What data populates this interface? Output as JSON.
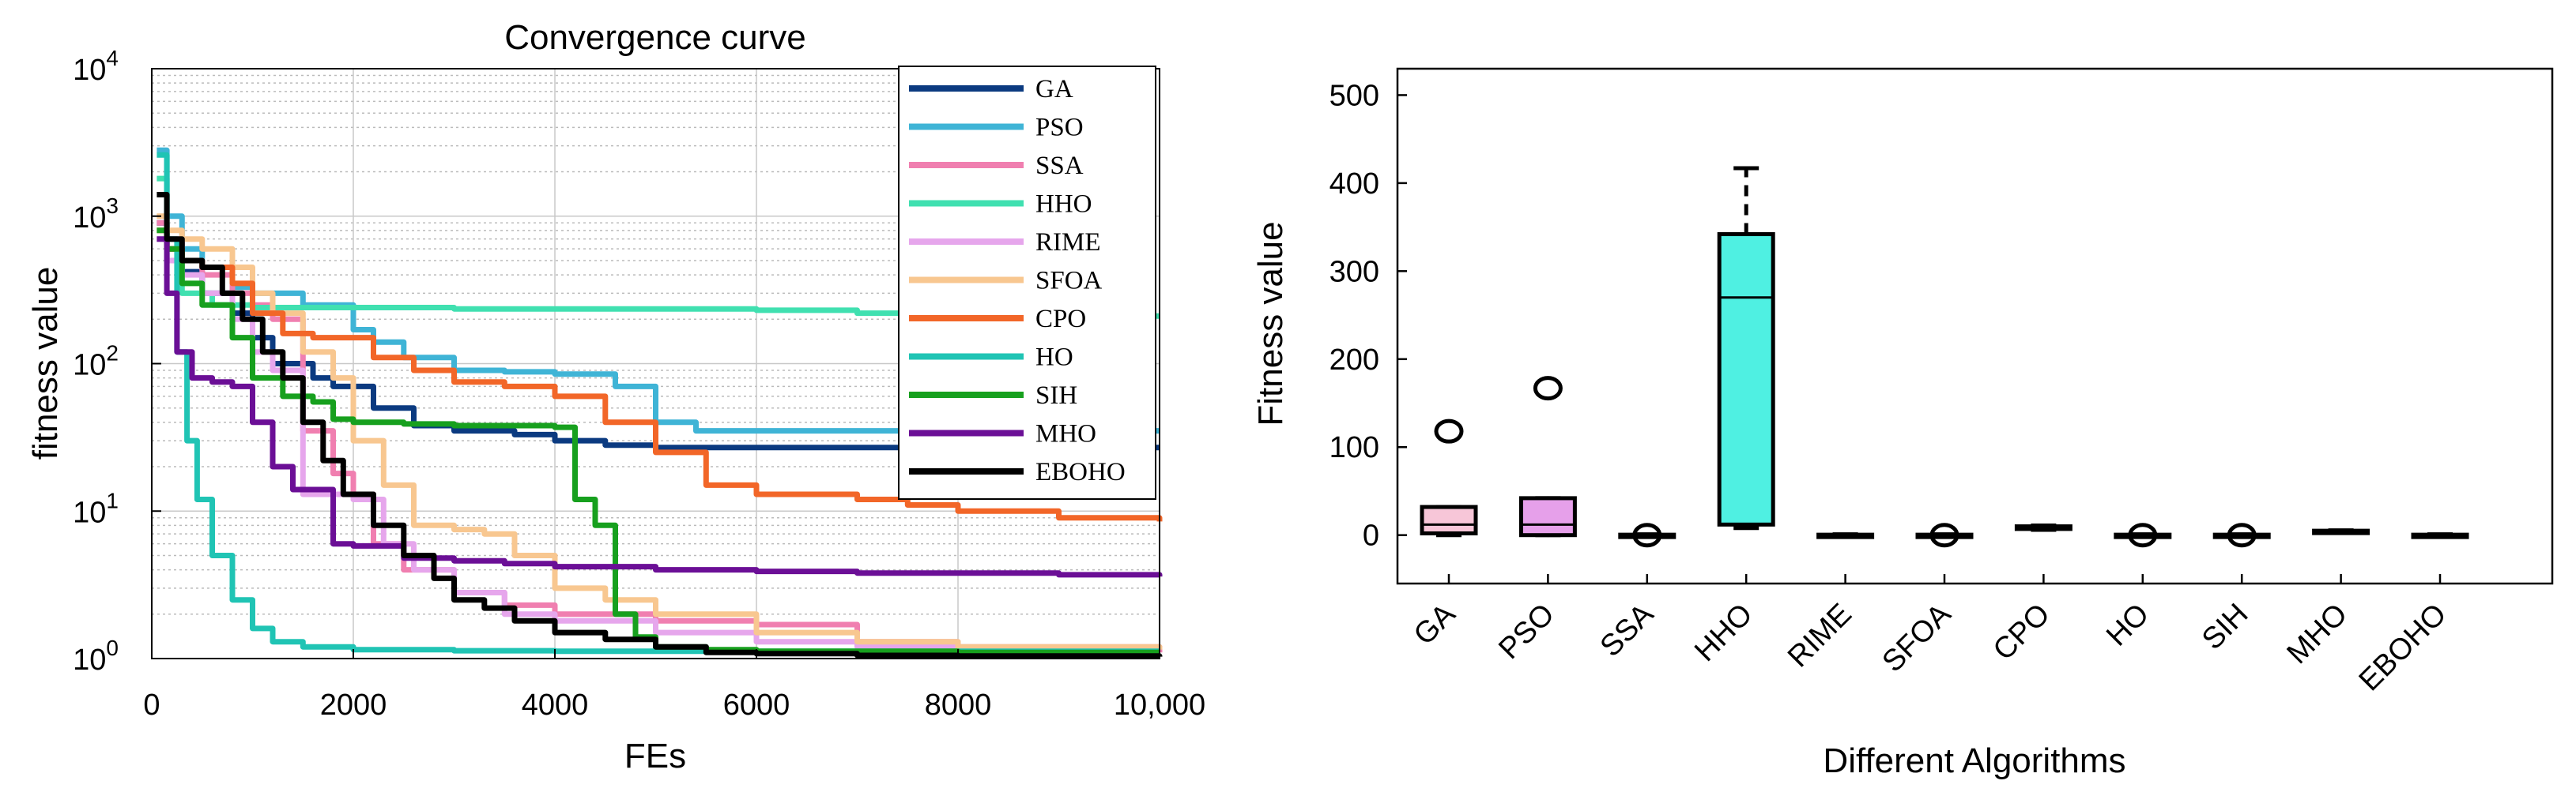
{
  "chart_data": [
    {
      "type": "line",
      "title": "Convergence curve",
      "xlabel": "FEs",
      "ylabel": "fitness value",
      "xlim": [
        0,
        10000
      ],
      "ylim": [
        1,
        10000
      ],
      "yscale": "log",
      "grid": true,
      "legend": "top-right",
      "xticks": [
        0,
        2000,
        4000,
        6000,
        8000,
        10000
      ],
      "xtick_labels": [
        "0",
        "2000",
        "4000",
        "6000",
        "8000",
        "10,000"
      ],
      "yticks": [
        1,
        10,
        100,
        1000,
        10000
      ],
      "ytick_labels": [
        {
          "base": "10",
          "exp": "0"
        },
        {
          "base": "10",
          "exp": "1"
        },
        {
          "base": "10",
          "exp": "2"
        },
        {
          "base": "10",
          "exp": "3"
        },
        {
          "base": "10",
          "exp": "4"
        }
      ],
      "series": [
        {
          "name": "GA",
          "color": "#0b3a80",
          "x": [
            50,
            150,
            300,
            500,
            800,
            1000,
            1200,
            1600,
            1800,
            2200,
            2600,
            3000,
            3600,
            4000,
            4500,
            5000,
            6000,
            7000,
            8000,
            9000,
            10000
          ],
          "y": [
            900,
            600,
            420,
            300,
            220,
            150,
            100,
            80,
            70,
            50,
            38,
            35,
            33,
            30,
            28,
            27,
            27,
            27,
            27,
            27,
            27
          ]
        },
        {
          "name": "PSO",
          "color": "#3fb4d6",
          "x": [
            50,
            150,
            300,
            500,
            800,
            1000,
            1500,
            2000,
            2200,
            2500,
            3000,
            3500,
            4000,
            4600,
            5000,
            5400,
            6000,
            7000,
            8000,
            9000,
            10000
          ],
          "y": [
            2800,
            1000,
            600,
            450,
            330,
            300,
            250,
            170,
            140,
            110,
            90,
            88,
            85,
            70,
            40,
            35,
            35,
            35,
            35,
            35,
            35
          ]
        },
        {
          "name": "SSA",
          "color": "#f07fb0",
          "x": [
            50,
            150,
            300,
            500,
            800,
            1000,
            1200,
            1500,
            1800,
            2000,
            2200,
            2500,
            3000,
            3500,
            4000,
            5000,
            6000,
            7000,
            8000,
            10000
          ],
          "y": [
            900,
            700,
            500,
            400,
            300,
            250,
            200,
            35,
            18,
            13,
            6,
            4,
            2.8,
            2.3,
            2,
            1.8,
            1.7,
            1.3,
            1.2,
            1.1
          ]
        },
        {
          "name": "HHO",
          "color": "#40e0b0",
          "x": [
            50,
            150,
            300,
            600,
            1000,
            2000,
            3000,
            4000,
            5000,
            6000,
            7000,
            8000,
            9000,
            10000
          ],
          "y": [
            1800,
            500,
            300,
            250,
            240,
            240,
            235,
            235,
            235,
            230,
            220,
            215,
            210,
            210
          ]
        },
        {
          "name": "RIME",
          "color": "#e6a6ec",
          "x": [
            50,
            150,
            300,
            500,
            800,
            1000,
            1200,
            1500,
            1800,
            2000,
            2300,
            2600,
            3000,
            3500,
            4000,
            5000,
            6000,
            7000,
            8000,
            10000
          ],
          "y": [
            700,
            500,
            400,
            300,
            200,
            120,
            90,
            13,
            13,
            12,
            6,
            4,
            2.8,
            2,
            1.8,
            1.5,
            1.3,
            1.2,
            1.1,
            1.1
          ]
        },
        {
          "name": "SFOA",
          "color": "#f8c790",
          "x": [
            50,
            150,
            300,
            500,
            800,
            1000,
            1200,
            1500,
            1800,
            2000,
            2300,
            2600,
            3000,
            3300,
            3600,
            4000,
            4500,
            5000,
            6000,
            7000,
            8000,
            10000
          ],
          "y": [
            1000,
            800,
            700,
            600,
            450,
            300,
            220,
            120,
            80,
            30,
            15,
            8,
            7.5,
            7,
            5,
            3,
            2.5,
            2,
            1.5,
            1.3,
            1.2,
            1.15
          ]
        },
        {
          "name": "CPO",
          "color": "#f26628",
          "x": [
            50,
            150,
            300,
            500,
            800,
            1000,
            1300,
            1600,
            1900,
            2200,
            2600,
            3000,
            3500,
            4000,
            4500,
            5000,
            5500,
            6000,
            6500,
            7000,
            7500,
            8000,
            9000,
            10000
          ],
          "y": [
            800,
            600,
            500,
            450,
            350,
            220,
            160,
            150,
            150,
            110,
            90,
            75,
            70,
            60,
            40,
            25,
            15,
            13,
            13,
            12,
            11,
            10,
            9,
            8.5
          ]
        },
        {
          "name": "HO",
          "color": "#20c4b4",
          "x": [
            50,
            150,
            250,
            350,
            450,
            600,
            800,
            1000,
            1200,
            1500,
            2000,
            3000,
            4000,
            5000,
            6000,
            8000,
            10000
          ],
          "y": [
            2600,
            700,
            120,
            30,
            12,
            5,
            2.5,
            1.6,
            1.3,
            1.2,
            1.15,
            1.13,
            1.12,
            1.12,
            1.12,
            1.12,
            1.12
          ]
        },
        {
          "name": "SIH",
          "color": "#17a01e",
          "x": [
            50,
            150,
            300,
            500,
            800,
            1000,
            1300,
            1600,
            1800,
            2000,
            2500,
            3000,
            3500,
            4000,
            4200,
            4400,
            4600,
            4800,
            5000,
            5500,
            6000,
            7000,
            8000,
            10000
          ],
          "y": [
            800,
            600,
            350,
            250,
            150,
            80,
            60,
            55,
            42,
            40,
            39,
            38,
            38,
            37,
            12,
            8,
            2,
            1.4,
            1.2,
            1.15,
            1.12,
            1.12,
            1.1,
            1.1
          ]
        },
        {
          "name": "MHO",
          "color": "#6b0f96",
          "x": [
            50,
            150,
            250,
            400,
            600,
            800,
            1000,
            1200,
            1400,
            1600,
            1800,
            2000,
            2500,
            3000,
            3500,
            4000,
            5000,
            6000,
            7000,
            8000,
            9000,
            10000
          ],
          "y": [
            700,
            300,
            120,
            80,
            75,
            70,
            40,
            20,
            14,
            14,
            6,
            5.8,
            4.8,
            4.6,
            4.4,
            4.2,
            4,
            3.9,
            3.8,
            3.8,
            3.7,
            3.6
          ]
        },
        {
          "name": "EBOHO",
          "color": "#000000",
          "x": [
            50,
            150,
            300,
            500,
            700,
            900,
            1100,
            1300,
            1500,
            1700,
            1900,
            2200,
            2500,
            2800,
            3000,
            3300,
            3600,
            4000,
            4500,
            5000,
            5500,
            6000,
            7000,
            8000,
            10000
          ],
          "y": [
            1400,
            700,
            500,
            450,
            300,
            200,
            120,
            80,
            40,
            22,
            13,
            8,
            5,
            3.5,
            2.5,
            2.2,
            1.8,
            1.5,
            1.35,
            1.2,
            1.1,
            1.08,
            1.05,
            1.04,
            1.03
          ]
        }
      ]
    },
    {
      "type": "box",
      "xlabel": "Different Algorithms",
      "ylabel": "Fitness value",
      "ylim": [
        -55,
        530
      ],
      "yticks": [
        0,
        100,
        200,
        300,
        400,
        500
      ],
      "categories": [
        "GA",
        "PSO",
        "SSA",
        "HHO",
        "RIME",
        "SFOA",
        "CPO",
        "HO",
        "SIH",
        "MHO",
        "EBOHO"
      ],
      "boxes": [
        {
          "name": "GA",
          "min": 0,
          "q1": 2,
          "median": 12,
          "q3": 32,
          "max": 32,
          "outliers": [
            118
          ],
          "fill": "#f7c6d8"
        },
        {
          "name": "PSO",
          "min": 0,
          "q1": 0,
          "median": 12,
          "q3": 42,
          "max": 42,
          "outliers": [
            167
          ],
          "fill": "#e6a0ea"
        },
        {
          "name": "SSA",
          "min": 0,
          "q1": 0,
          "median": 0,
          "q3": 0.5,
          "max": 1,
          "outliers": [
            0
          ],
          "fill": "#f7c6d8"
        },
        {
          "name": "HHO",
          "min": 8,
          "q1": 12,
          "median": 270,
          "q3": 342,
          "max": 417,
          "outliers": [],
          "fill": "#4ff0e2"
        },
        {
          "name": "RIME",
          "min": 0,
          "q1": 0,
          "median": 0,
          "q3": 0.5,
          "max": 1,
          "outliers": [],
          "fill": "#e6a0ea"
        },
        {
          "name": "SFOA",
          "min": 0,
          "q1": 0,
          "median": 0,
          "q3": 0.5,
          "max": 1,
          "outliers": [
            0
          ],
          "fill": "#f8c790"
        },
        {
          "name": "CPO",
          "min": 6,
          "q1": 7,
          "median": 8,
          "q3": 10,
          "max": 11,
          "outliers": [],
          "fill": "#f26628"
        },
        {
          "name": "HO",
          "min": 0,
          "q1": 0,
          "median": 0,
          "q3": 0.5,
          "max": 1,
          "outliers": [
            0
          ],
          "fill": "#20c4b4"
        },
        {
          "name": "SIH",
          "min": 0,
          "q1": 0,
          "median": 0,
          "q3": 0.5,
          "max": 1,
          "outliers": [
            0
          ],
          "fill": "#17a01e"
        },
        {
          "name": "MHO",
          "min": 3,
          "q1": 3.5,
          "median": 4,
          "q3": 5,
          "max": 5.5,
          "outliers": [],
          "fill": "#6b0f96"
        },
        {
          "name": "EBOHO",
          "min": 0,
          "q1": 0,
          "median": 0,
          "q3": 0.5,
          "max": 1,
          "outliers": [],
          "fill": "#ffffff"
        }
      ]
    }
  ]
}
